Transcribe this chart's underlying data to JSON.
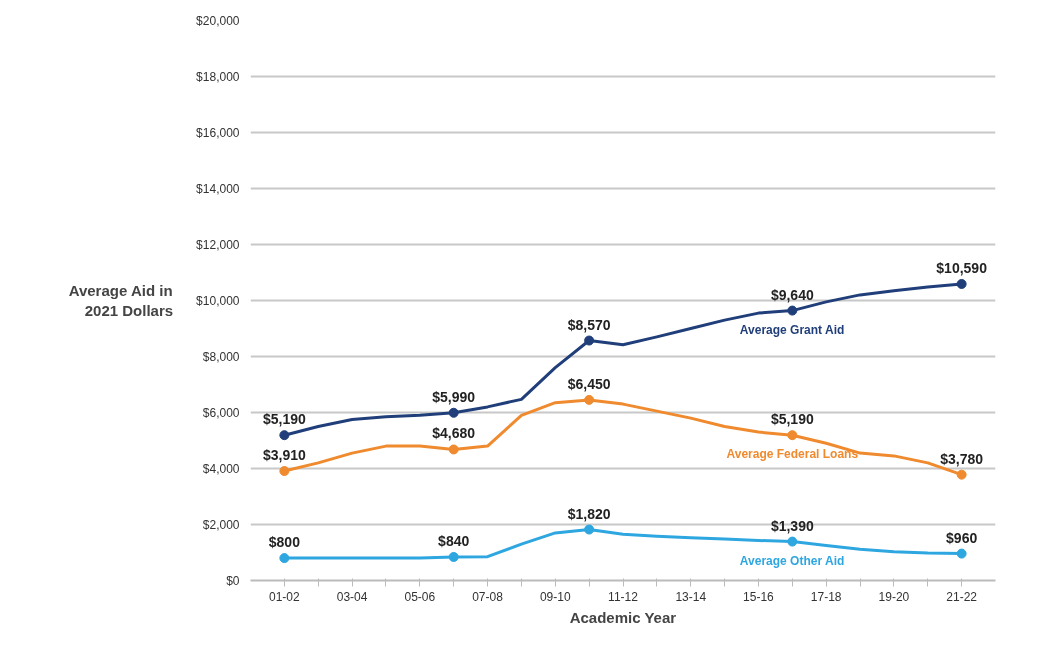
{
  "chart_data": {
    "type": "line",
    "xlabel": "Academic Year",
    "ylabel": "Average Aid in\n2021 Dollars",
    "categories": [
      "01-02",
      null,
      "03-04",
      null,
      "05-06",
      null,
      "07-08",
      null,
      "09-10",
      null,
      "11-12",
      null,
      "13-14",
      null,
      "15-16",
      null,
      "17-18",
      null,
      "19-20",
      null,
      "21-22"
    ],
    "series": [
      {
        "name": "Average Grant Aid",
        "color": "#203f7a",
        "values": [
          5190,
          5500,
          5750,
          5850,
          5900,
          5990,
          6200,
          6470,
          7600,
          8570,
          8420,
          8700,
          9000,
          9300,
          9550,
          9640,
          9950,
          10200,
          10350,
          10480,
          10590
        ],
        "value_labels": [
          "$5,190",
          null,
          null,
          null,
          null,
          "$5,990",
          null,
          null,
          null,
          "$8,570",
          null,
          null,
          null,
          null,
          null,
          "$9,640",
          null,
          null,
          null,
          null,
          "$10,590"
        ]
      },
      {
        "name": "Average Federal Loans",
        "color": "#ef8a2e",
        "values": [
          3910,
          4200,
          4550,
          4800,
          4800,
          4680,
          4800,
          5900,
          6350,
          6450,
          6300,
          6050,
          5800,
          5500,
          5300,
          5190,
          4900,
          4550,
          4450,
          4200,
          3780
        ],
        "value_labels": [
          "$3,910",
          null,
          null,
          null,
          null,
          "$4,680",
          null,
          null,
          null,
          "$6,450",
          null,
          null,
          null,
          null,
          null,
          "$5,190",
          null,
          null,
          null,
          null,
          "$3,780"
        ]
      },
      {
        "name": "Average Other Aid",
        "color": "#2ea6e0",
        "values": [
          800,
          800,
          800,
          800,
          800,
          840,
          850,
          1300,
          1700,
          1820,
          1650,
          1580,
          1530,
          1480,
          1430,
          1390,
          1250,
          1120,
          1030,
          980,
          960
        ],
        "value_labels": [
          "$800",
          null,
          null,
          null,
          null,
          "$840",
          null,
          null,
          null,
          "$1,820",
          null,
          null,
          null,
          null,
          null,
          "$1,390",
          null,
          null,
          null,
          null,
          "$960"
        ]
      }
    ],
    "ylim": [
      0,
      20000
    ],
    "yticks": [
      {
        "value": 0,
        "label": "$0"
      },
      {
        "value": 2000,
        "label": "$2,000"
      },
      {
        "value": 4000,
        "label": "$4,000"
      },
      {
        "value": 6000,
        "label": "$6,000"
      },
      {
        "value": 8000,
        "label": "$8,000"
      },
      {
        "value": 10000,
        "label": "$10,000"
      },
      {
        "value": 12000,
        "label": "$12,000"
      },
      {
        "value": 14000,
        "label": "$14,000"
      },
      {
        "value": 16000,
        "label": "$16,000"
      },
      {
        "value": 18000,
        "label": "$18,000"
      },
      {
        "value": 20000,
        "label": "$20,000"
      }
    ],
    "grid": "y",
    "legend": false,
    "line_style": "solid"
  }
}
